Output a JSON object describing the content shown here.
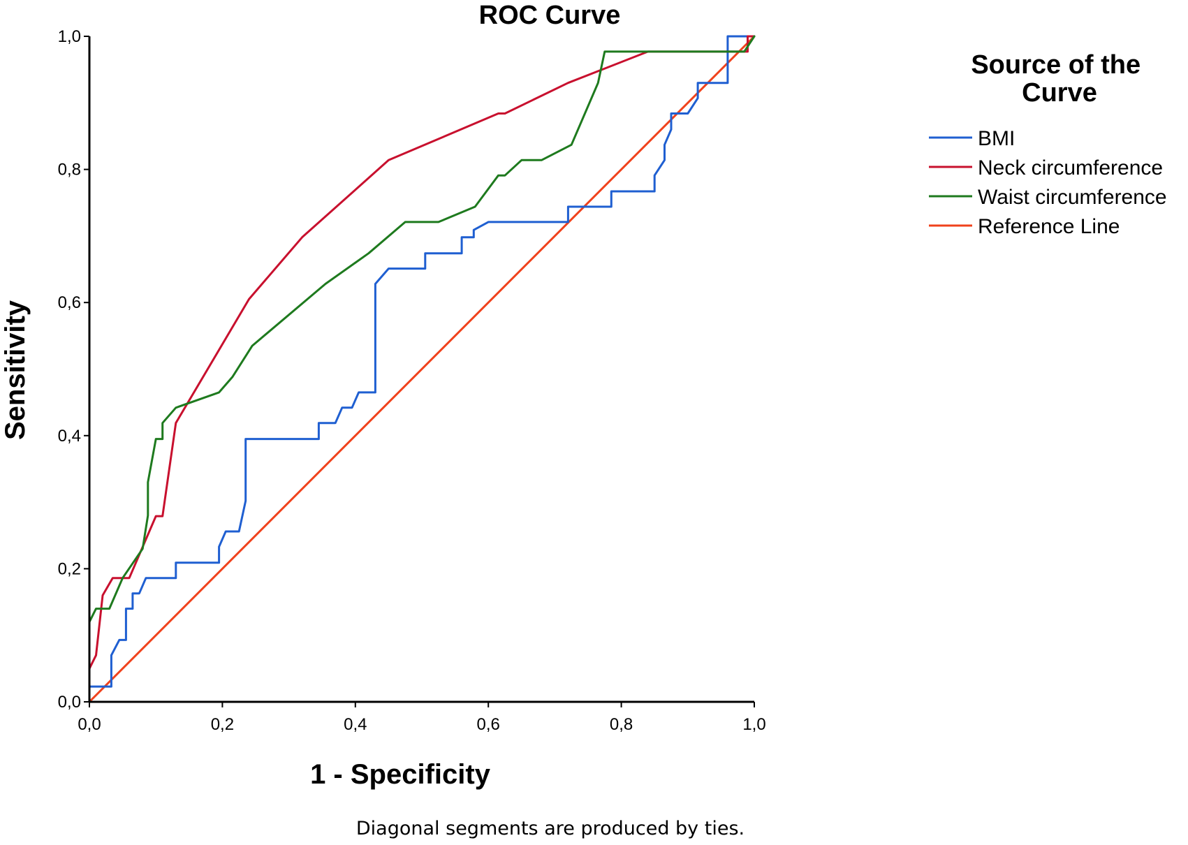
{
  "chart_data": {
    "type": "line",
    "title": "ROC Curve",
    "xlabel": "1 - Specificity",
    "ylabel": "Sensitivity",
    "xlim": [
      0,
      1
    ],
    "ylim": [
      0,
      1
    ],
    "x_ticks": [
      "0,0",
      "0,2",
      "0,4",
      "0,6",
      "0,8",
      "1,0"
    ],
    "y_ticks": [
      "0,0",
      "0,2",
      "0,4",
      "0,6",
      "0,8",
      "1,0"
    ],
    "grid": false,
    "legend_position": "right",
    "legend_title": "Source of the Curve",
    "legend_title_lines": [
      "Source of the",
      "Curve"
    ],
    "footnote": "Diagonal segments are produced by ties.",
    "series": [
      {
        "name": "BMI",
        "color": "#1f5fd1",
        "x": [
          0,
          0,
          0.033,
          0.033,
          0.045,
          0.055,
          0.055,
          0.065,
          0.065,
          0.075,
          0.085,
          0.085,
          0.13,
          0.13,
          0.195,
          0.195,
          0.205,
          0.225,
          0.235,
          0.235,
          0.345,
          0.345,
          0.37,
          0.38,
          0.38,
          0.395,
          0.405,
          0.405,
          0.43,
          0.43,
          0.45,
          0.505,
          0.505,
          0.56,
          0.56,
          0.578,
          0.578,
          0.6,
          0.6,
          0.72,
          0.72,
          0.785,
          0.785,
          0.85,
          0.85,
          0.865,
          0.865,
          0.875,
          0.875,
          0.9,
          0.915,
          0.915,
          0.96,
          0.96,
          1.0
        ],
        "y": [
          0,
          0.023,
          0.023,
          0.07,
          0.093,
          0.093,
          0.14,
          0.14,
          0.163,
          0.163,
          0.186,
          0.186,
          0.186,
          0.209,
          0.209,
          0.233,
          0.256,
          0.256,
          0.302,
          0.395,
          0.395,
          0.419,
          0.419,
          0.442,
          0.442,
          0.442,
          0.465,
          0.465,
          0.465,
          0.628,
          0.651,
          0.651,
          0.674,
          0.674,
          0.698,
          0.698,
          0.709,
          0.721,
          0.721,
          0.721,
          0.744,
          0.744,
          0.767,
          0.767,
          0.791,
          0.814,
          0.837,
          0.86,
          0.884,
          0.884,
          0.907,
          0.93,
          0.93,
          1.0,
          1.0
        ]
      },
      {
        "name": "Neck circumference",
        "color": "#c8102e",
        "x": [
          0,
          0.01,
          0.02,
          0.035,
          0.06,
          0.1,
          0.11,
          0.13,
          0.24,
          0.32,
          0.45,
          0.615,
          0.625,
          0.72,
          0.84,
          0.99,
          0.99,
          1.0
        ],
        "y": [
          0.05,
          0.07,
          0.16,
          0.186,
          0.186,
          0.279,
          0.279,
          0.419,
          0.605,
          0.698,
          0.814,
          0.884,
          0.884,
          0.93,
          0.977,
          0.977,
          1.0,
          1.0
        ]
      },
      {
        "name": "Waist circumference",
        "color": "#1e7a1e",
        "x": [
          0,
          0,
          0.01,
          0.03,
          0.05,
          0.08,
          0.088,
          0.088,
          0.1,
          0.11,
          0.11,
          0.13,
          0.195,
          0.215,
          0.245,
          0.355,
          0.42,
          0.475,
          0.525,
          0.58,
          0.615,
          0.625,
          0.65,
          0.68,
          0.725,
          0.765,
          0.775,
          0.985,
          1.0
        ],
        "y": [
          0,
          0.12,
          0.14,
          0.14,
          0.186,
          0.23,
          0.28,
          0.33,
          0.395,
          0.395,
          0.419,
          0.442,
          0.465,
          0.488,
          0.535,
          0.628,
          0.674,
          0.721,
          0.721,
          0.744,
          0.791,
          0.791,
          0.814,
          0.814,
          0.837,
          0.93,
          0.977,
          0.977,
          1.0
        ]
      },
      {
        "name": "Reference Line",
        "color": "#f0421c",
        "x": [
          0,
          1
        ],
        "y": [
          0,
          1
        ]
      }
    ]
  }
}
